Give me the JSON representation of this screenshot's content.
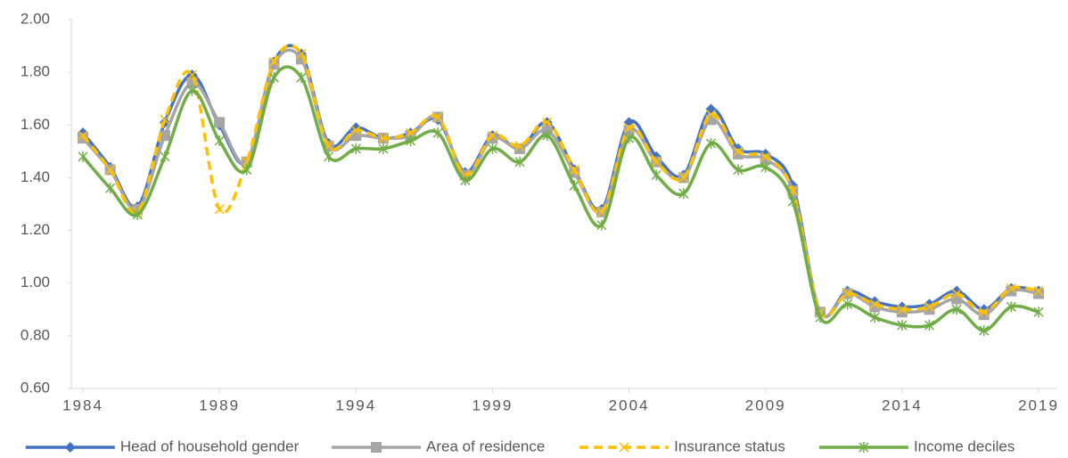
{
  "chart_data": {
    "type": "line",
    "x": [
      1984,
      1985,
      1986,
      1987,
      1988,
      1989,
      1990,
      1991,
      1992,
      1993,
      1994,
      1995,
      1996,
      1997,
      1998,
      1999,
      2000,
      2001,
      2002,
      2003,
      2004,
      2005,
      2006,
      2007,
      2008,
      2009,
      2010,
      2011,
      2012,
      2013,
      2014,
      2015,
      2016,
      2017,
      2018,
      2019
    ],
    "xlim": [
      1984,
      2019
    ],
    "xticks": [
      1984,
      1989,
      1994,
      1999,
      2004,
      2009,
      2014,
      2019
    ],
    "ylim": [
      0.6,
      2.0
    ],
    "yticks": [
      {
        "value": 0.6,
        "label": "0.60"
      },
      {
        "value": 0.8,
        "label": "0.80"
      },
      {
        "value": 1.0,
        "label": "1.00"
      },
      {
        "value": 1.2,
        "label": "1.20"
      },
      {
        "value": 1.4,
        "label": "1.40"
      },
      {
        "value": 1.6,
        "label": "1.60"
      },
      {
        "value": 1.8,
        "label": "1.80"
      },
      {
        "value": 2.0,
        "label": "2.00"
      }
    ],
    "grid": false,
    "smooth": true,
    "legend": "bottom",
    "series": [
      {
        "name": "Head of household gender",
        "color": "#4472c4",
        "marker": "diamond",
        "dashed": false,
        "values": [
          1.57,
          1.44,
          1.29,
          1.61,
          1.79,
          1.6,
          1.46,
          1.84,
          1.87,
          1.53,
          1.59,
          1.55,
          1.57,
          1.62,
          1.42,
          1.56,
          1.51,
          1.61,
          1.43,
          1.28,
          1.61,
          1.48,
          1.41,
          1.66,
          1.51,
          1.49,
          1.37,
          0.89,
          0.97,
          0.93,
          0.91,
          0.92,
          0.97,
          0.9,
          0.98,
          0.97
        ]
      },
      {
        "name": "Area of residence",
        "color": "#a5a5a5",
        "marker": "square",
        "dashed": false,
        "values": [
          1.55,
          1.43,
          1.28,
          1.56,
          1.76,
          1.61,
          1.46,
          1.83,
          1.85,
          1.52,
          1.56,
          1.55,
          1.56,
          1.63,
          1.41,
          1.55,
          1.51,
          1.58,
          1.42,
          1.27,
          1.58,
          1.46,
          1.4,
          1.62,
          1.49,
          1.47,
          1.35,
          0.89,
          0.96,
          0.91,
          0.89,
          0.9,
          0.94,
          0.88,
          0.97,
          0.96
        ]
      },
      {
        "name": "Insurance status",
        "color": "#ffc000",
        "marker": "x",
        "dashed": true,
        "values": [
          1.56,
          1.43,
          1.27,
          1.62,
          1.79,
          1.28,
          1.46,
          1.84,
          1.87,
          1.52,
          1.58,
          1.55,
          1.57,
          1.63,
          1.41,
          1.56,
          1.52,
          1.61,
          1.43,
          1.27,
          1.59,
          1.46,
          1.4,
          1.64,
          1.5,
          1.48,
          1.35,
          0.89,
          0.96,
          0.92,
          0.9,
          0.91,
          0.96,
          0.89,
          0.98,
          0.97
        ]
      },
      {
        "name": "Income deciles",
        "color": "#70ad47",
        "marker": "star",
        "dashed": false,
        "values": [
          1.48,
          1.36,
          1.26,
          1.48,
          1.73,
          1.54,
          1.43,
          1.78,
          1.78,
          1.48,
          1.51,
          1.51,
          1.54,
          1.57,
          1.39,
          1.51,
          1.46,
          1.56,
          1.37,
          1.22,
          1.55,
          1.41,
          1.34,
          1.53,
          1.43,
          1.44,
          1.31,
          0.87,
          0.92,
          0.87,
          0.84,
          0.84,
          0.9,
          0.82,
          0.91,
          0.89
        ]
      }
    ]
  }
}
